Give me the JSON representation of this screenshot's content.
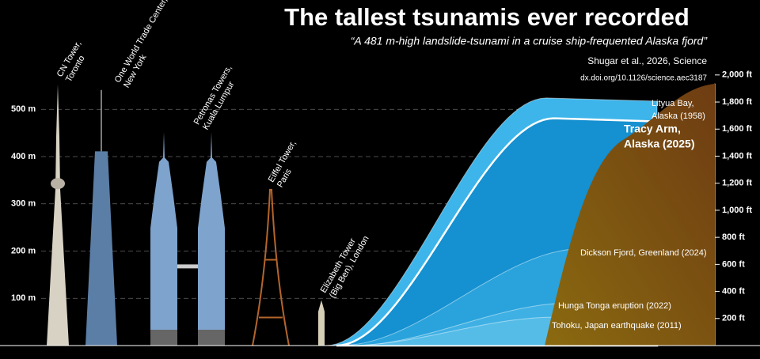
{
  "chart_data": {
    "type": "skyline",
    "title": "The tallest tsunamis ever recorded",
    "subtitle": "“A 481 m-high landslide-tsunami in a cruise ship-frequented Alaska fjord”",
    "source": "Shugar et al., 2026, Science",
    "doi": "dx.doi.org/10.1126/science.aec3187",
    "ylim": [
      0,
      630
    ],
    "yticks": [
      {
        "value": 100,
        "label": "100 m"
      },
      {
        "value": 200,
        "label": "200 m"
      },
      {
        "value": 300,
        "label": "300 m"
      },
      {
        "value": 400,
        "label": "400 m"
      },
      {
        "value": 500,
        "label": "500 m"
      }
    ],
    "y2lim": [
      0,
      2200
    ],
    "y2ticks": [
      {
        "value": 200,
        "label": "200 ft"
      },
      {
        "value": 400,
        "label": "400 ft"
      },
      {
        "value": 600,
        "label": "600 ft"
      },
      {
        "value": 800,
        "label": "800 ft"
      },
      {
        "value": 1000,
        "label": "1,000 ft"
      },
      {
        "value": 1200,
        "label": "1,200 ft"
      },
      {
        "value": 1400,
        "label": "1,400 ft"
      },
      {
        "value": 1600,
        "label": "1,600 ft"
      },
      {
        "value": 1800,
        "label": "1,800 ft"
      },
      {
        "value": 2000,
        "label": "2,000 ft"
      }
    ],
    "grid": true,
    "structures": [
      {
        "label": [
          "CN Tower,",
          "Toronto"
        ],
        "height": 553
      },
      {
        "label": [
          "One World Trade Center,",
          "New York"
        ],
        "height": 541
      },
      {
        "label": [
          "Petronas Towers,",
          "Kuala Lumpur"
        ],
        "height": 452
      },
      {
        "label": [
          "Eiffel Tower,",
          "Paris"
        ],
        "height": 330
      },
      {
        "label": [
          "Elizabeth Tower",
          "(Big Ben), London"
        ],
        "height": 96
      }
    ],
    "tsunamis": [
      {
        "label": [
          "Lityua Bay,",
          "Alaska (1958)"
        ],
        "height": 524,
        "color": "#3db5ea"
      },
      {
        "label": [
          "Tracy Arm,",
          "Alaska (2025)"
        ],
        "height": 481,
        "color": "#1590d0"
      },
      {
        "label": [
          "Dickson Fjord, Greenland (2024)"
        ],
        "height": 205,
        "color": "#2aa3dc"
      },
      {
        "label": [
          "Hunga Tonga eruption (2022)"
        ],
        "height": 90,
        "color": "#3fb0e4"
      },
      {
        "label": [
          "Tohoku, Japan earthquake (2011)"
        ],
        "height": 60,
        "color": "#55bce8"
      }
    ]
  }
}
